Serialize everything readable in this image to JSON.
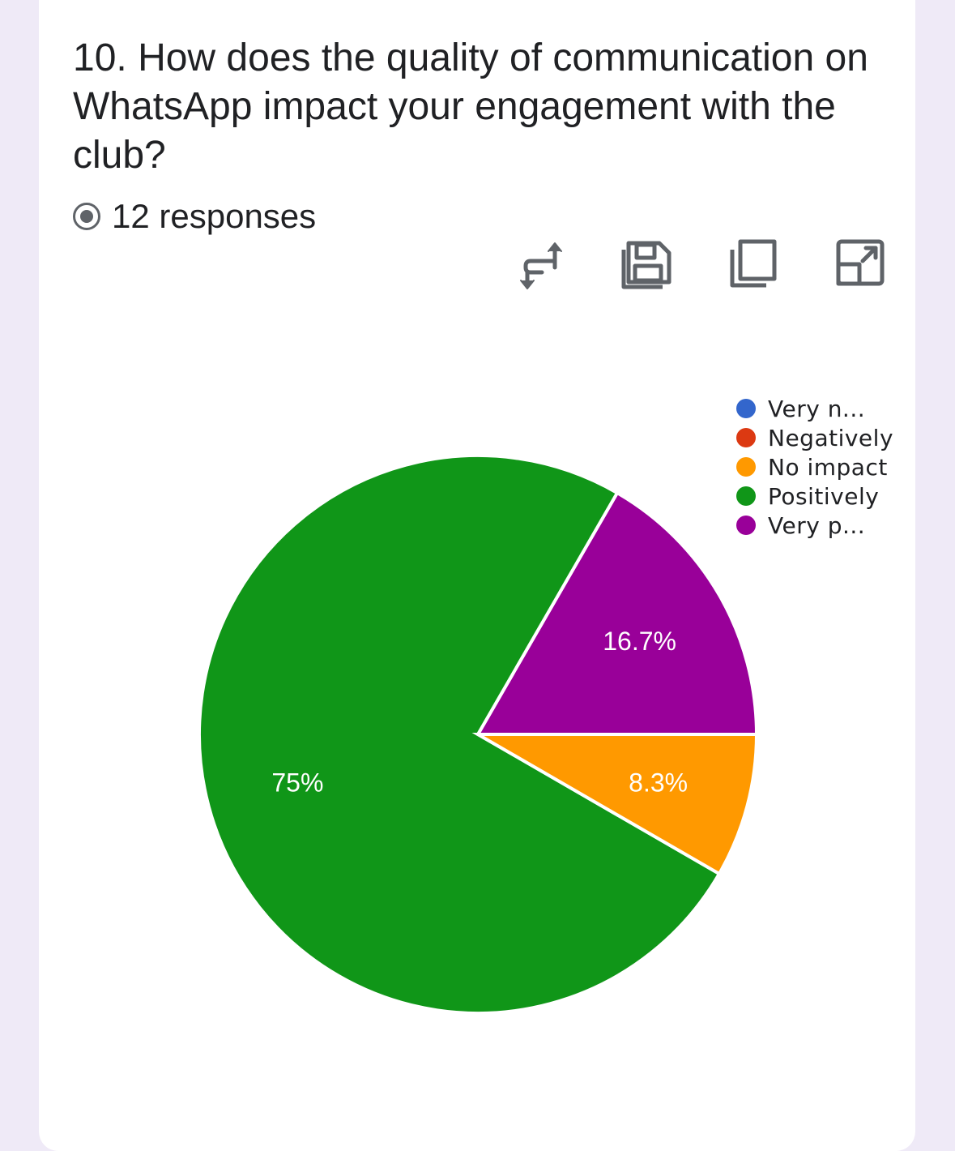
{
  "question": {
    "title": "10. How does the quality of communication on WhatsApp impact your engagement with the club?"
  },
  "responses": {
    "count_text": "12 responses"
  },
  "toolbar": {
    "icons": [
      "swap-icon",
      "save-icon",
      "copy-icon",
      "expand-icon"
    ]
  },
  "chart_data": {
    "type": "pie",
    "total_responses": 12,
    "slices": [
      {
        "name": "Very n...",
        "value": 0,
        "percent": 0,
        "label": "",
        "color": "#3366cc"
      },
      {
        "name": "Negatively",
        "value": 0,
        "percent": 0,
        "label": "",
        "color": "#dc3912"
      },
      {
        "name": "No impact",
        "value": 1,
        "percent": 8.3,
        "label": "8.3%",
        "color": "#ff9900"
      },
      {
        "name": "Positively",
        "value": 9,
        "percent": 75,
        "label": "75%",
        "color": "#109618"
      },
      {
        "name": "Very p...",
        "value": 2,
        "percent": 16.7,
        "label": "16.7%",
        "color": "#990099"
      }
    ],
    "legend_position": "top-right"
  }
}
